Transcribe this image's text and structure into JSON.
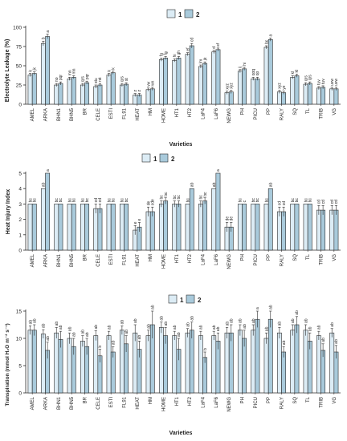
{
  "legend_labels": [
    "1",
    "2"
  ],
  "colors": {
    "s1": "#dcecf5",
    "s2": "#a9cadb",
    "stroke": "#2b2b2b",
    "text": "#222222"
  },
  "chart_data": [
    {
      "type": "bar",
      "ylabel": "Electrolyte Leakage (%)",
      "xlabel": "Varieties",
      "ylim": [
        0,
        100
      ],
      "yticks": [
        0,
        25,
        50,
        75,
        100
      ],
      "legend_position": "top-center",
      "categories": [
        "AMEL",
        "ARKA",
        "BHN1",
        "BHN5",
        "BR",
        "CELE",
        "ESTI",
        "FL91",
        "HEAT",
        "HM",
        "HOME",
        "HT1",
        "HT2",
        "LaF4",
        "LaF6",
        "NEWG",
        "PH",
        "PICU",
        "PP",
        "RALY",
        "SQ",
        "TL",
        "TRIB",
        "VG"
      ],
      "series": [
        {
          "name": "1",
          "values": [
            38,
            79,
            25,
            33,
            25,
            23,
            38,
            25,
            12,
            19,
            58,
            57,
            65,
            49,
            68,
            15,
            43,
            33,
            74,
            16,
            35,
            26,
            21,
            20
          ],
          "err": [
            2,
            3,
            2,
            2,
            2,
            2,
            2,
            2,
            2,
            2,
            2,
            2,
            2,
            2,
            2,
            2,
            2,
            2,
            2,
            2,
            2,
            2,
            2,
            2
          ],
          "labels": [
            "k",
            "b",
            "no",
            "mn",
            "qrs",
            "stu",
            "k",
            "qrs",
            "z",
            "vw",
            "fg",
            "hi",
            "ef",
            "lm",
            "d",
            "xyz",
            "ij",
            "opq",
            "bc",
            "xyz",
            "kl",
            "qrs",
            "tuv",
            "uvw"
          ]
        },
        {
          "name": "2",
          "values": [
            40,
            88,
            27,
            35,
            28,
            25,
            41,
            26,
            12,
            20,
            60,
            60,
            76,
            53,
            71,
            16,
            46,
            33,
            84,
            15,
            37,
            27,
            22,
            20
          ],
          "err": [
            2,
            3,
            2,
            2,
            2,
            2,
            2,
            2,
            2,
            2,
            2,
            2,
            3,
            2,
            2,
            2,
            2,
            2,
            2,
            2,
            2,
            2,
            2,
            2
          ],
          "labels": [
            "jk",
            "a",
            "pqr",
            "mn",
            "pqr",
            "rst",
            "k",
            "st",
            "z",
            "wx",
            "fg",
            "gh",
            "cd",
            "jk",
            "ef",
            "xyz",
            "hi",
            "op",
            "a",
            "yz",
            "kl",
            "qrs",
            "tuv",
            "uvw"
          ]
        }
      ]
    },
    {
      "type": "bar",
      "ylabel": "Heat Injury Index",
      "xlabel": "",
      "ylim": [
        0,
        5
      ],
      "yticks": [
        0,
        1,
        2,
        3,
        4,
        5
      ],
      "categories": [
        "AMEL",
        "ARKA",
        "BHN1",
        "BHN5",
        "BR",
        "CELE",
        "ESTI",
        "FL91",
        "HEAT",
        "HM",
        "HOME",
        "HT1",
        "HT2",
        "LaF4",
        "LaF6",
        "NEWG",
        "PH",
        "PICU",
        "PP",
        "RALY",
        "SQ",
        "TL",
        "TRIB",
        "VG"
      ],
      "series": [
        {
          "name": "1",
          "values": [
            3,
            4,
            3,
            3,
            3,
            2.7,
            3,
            3,
            1.3,
            2.5,
            3,
            3,
            3,
            3,
            4,
            1.5,
            3,
            3,
            3,
            2.5,
            3,
            3,
            2.6,
            2.6
          ],
          "err": [
            0,
            0,
            0,
            0,
            0,
            0.3,
            0,
            0,
            0.3,
            0.3,
            0.2,
            0.2,
            0,
            0.2,
            0,
            0.3,
            0,
            0,
            0,
            0.3,
            0,
            0,
            0.3,
            0.3
          ],
          "labels": [
            "bc",
            "ab",
            "bc",
            "bc",
            "bc",
            "cd",
            "bc",
            "bc",
            "e",
            "de",
            "bc",
            "bc",
            "bc",
            "bc",
            "ab",
            "de",
            "bc",
            "bc",
            "bc",
            "cd",
            "bc",
            "bc",
            "cd",
            "cd"
          ]
        },
        {
          "name": "2",
          "values": [
            3,
            5,
            3,
            3,
            3,
            2.7,
            3,
            3,
            1.5,
            2.5,
            3.2,
            3,
            4,
            3.2,
            5,
            1.5,
            3,
            3,
            4,
            2.5,
            3,
            3,
            2.6,
            2.6
          ],
          "err": [
            0,
            0,
            0,
            0,
            0,
            0.3,
            0,
            0,
            0.3,
            0.3,
            0.2,
            0.2,
            0,
            0.2,
            0,
            0.3,
            0,
            0,
            0,
            0.3,
            0,
            0,
            0.3,
            0.3
          ],
          "labels": [
            "bc",
            "a",
            "bc",
            "bc",
            "bc",
            "cd",
            "bc",
            "bc",
            "e",
            "cde",
            "bc",
            "bc",
            "ab",
            "bc",
            "a",
            "de",
            "c",
            "bc",
            "ab",
            "cd",
            "bc",
            "bc",
            "cd",
            "cd"
          ]
        }
      ]
    },
    {
      "type": "bar",
      "ylabel": "Transpiration (mmol H₂O m⁻² s⁻¹)",
      "xlabel": "Varieties",
      "ylim": [
        0,
        15
      ],
      "yticks": [
        0,
        5,
        10,
        15
      ],
      "legend_position": "top-center",
      "categories": [
        "AMEL",
        "ARKA",
        "BHN1",
        "BHN5",
        "BR",
        "CELE",
        "ESTI",
        "FL91",
        "HEAT",
        "HM",
        "HOME",
        "HT1",
        "HT2",
        "LaF4",
        "LaF6",
        "NEWG",
        "PH",
        "PICU",
        "PP",
        "RALY",
        "SQ",
        "TL",
        "TRIB",
        "VG"
      ],
      "series": [
        {
          "name": "1",
          "values": [
            11.5,
            10.8,
            11,
            10,
            9.5,
            10.5,
            10.5,
            11.5,
            11,
            10.5,
            12,
            10.5,
            11,
            10.5,
            10.5,
            11,
            11.5,
            11.5,
            10,
            11,
            11.5,
            11.5,
            10.5,
            11
          ],
          "err": [
            0.8,
            0.8,
            1,
            1,
            1,
            0.9,
            0.8,
            0.8,
            1.5,
            1,
            1,
            0.8,
            0.8,
            0.8,
            0.8,
            1,
            1,
            1,
            1,
            1,
            1,
            1,
            0.8,
            0.8
          ],
          "labels": [
            "ab",
            "ab",
            "ab",
            "ab",
            "ab",
            "ab",
            "ab",
            "ab",
            "ab",
            "ab",
            "ab",
            "ab",
            "ab",
            "ab",
            "ab",
            "ab",
            "ab",
            "ab",
            "ab",
            "ab",
            "ab",
            "ab",
            "ab",
            "ab"
          ]
        },
        {
          "name": "2",
          "values": [
            11.5,
            7.8,
            9.8,
            8.5,
            8.5,
            6.8,
            7.5,
            9,
            8,
            12.5,
            10.5,
            8,
            11.5,
            6.5,
            9.5,
            11,
            10,
            13.5,
            13.5,
            7.5,
            12.5,
            9.5,
            7.8,
            7.5
          ],
          "err": [
            1,
            1.5,
            1.5,
            1.5,
            1.5,
            1.2,
            1,
            1.5,
            1.5,
            2.5,
            1.5,
            2,
            1.5,
            1,
            1.5,
            1.5,
            1.5,
            1.5,
            1.5,
            1,
            1.5,
            1.5,
            1.2,
            1.2
          ],
          "labels": [
            "ab",
            "ab",
            "ab",
            "ab",
            "ab",
            "b",
            "ab",
            "ab",
            "ab",
            "ab",
            "ab",
            "ab",
            "ab",
            "b",
            "ab",
            "ab",
            "ab",
            "a",
            "ab",
            "ab",
            "ab",
            "ab",
            "ab",
            "ab"
          ]
        }
      ]
    }
  ]
}
